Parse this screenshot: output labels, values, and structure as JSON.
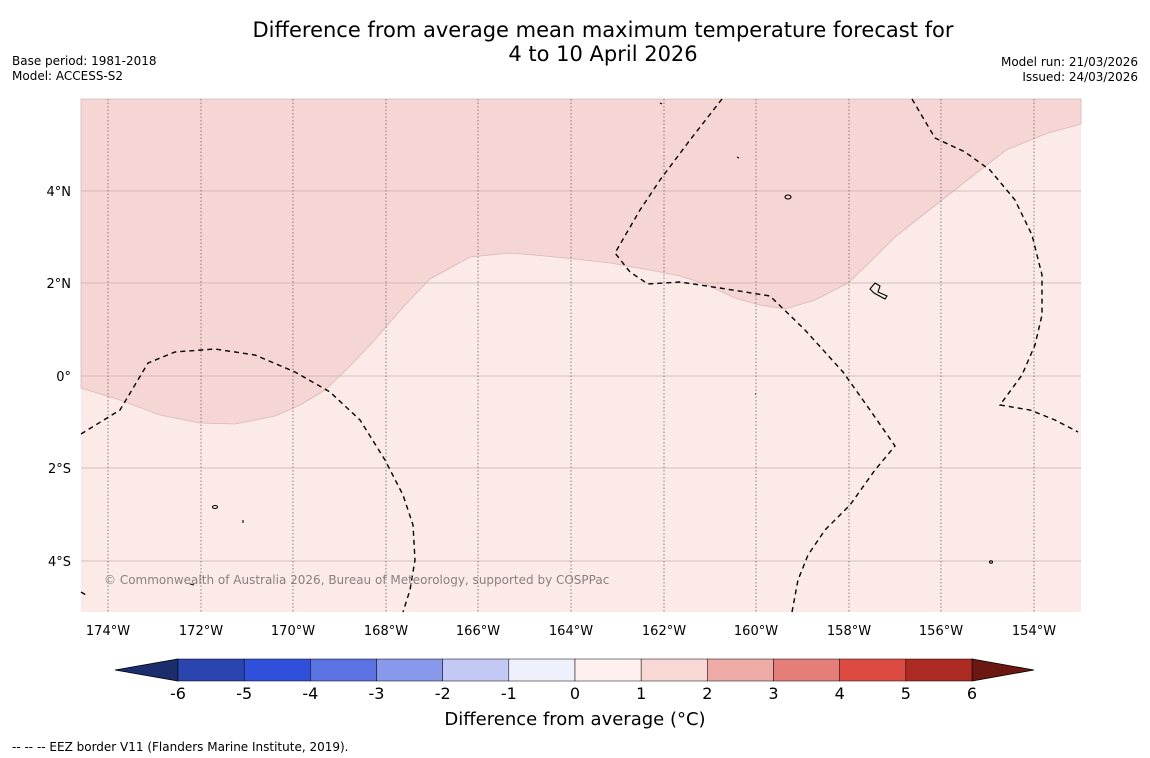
{
  "header": {
    "title_line1": "Difference from average mean maximum temperature forecast for",
    "title_line2": "4 to 10 April 2026",
    "base_period": "Base period: 1981-2018",
    "model": "Model: ACCESS-S2",
    "model_run": "Model run: 21/03/2026",
    "issued": "Issued: 24/03/2026"
  },
  "map": {
    "copyright": "© Commonwealth of Australia 2026, Bureau of Meteorology, supported by COSPPac",
    "lon_labels": [
      "174°W",
      "172°W",
      "170°W",
      "168°W",
      "166°W",
      "164°W",
      "162°W",
      "160°W",
      "158°W",
      "156°W",
      "154°W"
    ],
    "lat_labels": [
      "4°N",
      "2°N",
      "0°",
      "2°S",
      "4°S"
    ],
    "fill_colors": {
      "warm_0_1": "#fbeae8",
      "warm_1_2": "#f6d6d4"
    }
  },
  "colorbar": {
    "ticks": [
      "-6",
      "-5",
      "-4",
      "-3",
      "-2",
      "-1",
      "0",
      "1",
      "2",
      "3",
      "4",
      "5",
      "6"
    ],
    "colors": [
      "#2a44b0",
      "#3050dc",
      "#5a72e2",
      "#8898ea",
      "#c3c9f4",
      "#eef0fb",
      "#fdf0ee",
      "#f8d8d5",
      "#eeaaa7",
      "#e57e79",
      "#dc4a42",
      "#ad2a23"
    ],
    "lower_extend": "#1c2d6e",
    "upper_extend": "#6c1812",
    "label": "Difference from average (°C)"
  },
  "footer": {
    "legend": "--  --  -- EEZ border V11 (Flanders Marine Institute, 2019)."
  }
}
